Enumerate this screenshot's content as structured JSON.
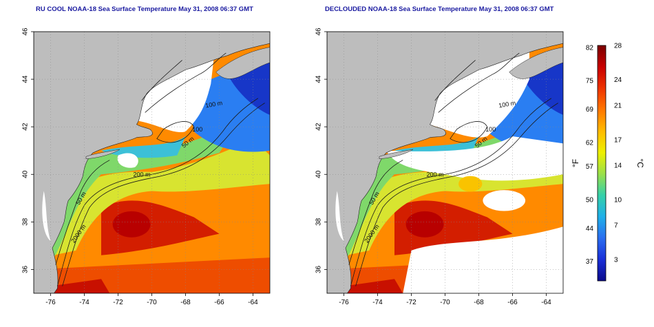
{
  "panels": [
    {
      "title": "RU COOL NOAA-18 Sea Surface Temperature May 31, 2008 06:37 GMT",
      "variant": "raw"
    },
    {
      "title": "DECLOUDED NOAA-18 Sea Surface Temperature May 31, 2008 06:37 GMT",
      "variant": "declouded"
    }
  ],
  "axes": {
    "lon_ticks": [
      "-76",
      "-74",
      "-72",
      "-70",
      "-68",
      "-66",
      "-64"
    ],
    "lat_ticks": [
      "36",
      "38",
      "40",
      "42",
      "44",
      "46"
    ],
    "lon_range": [
      -77,
      -63
    ],
    "lat_range": [
      35,
      46
    ]
  },
  "contours": [
    "100 m",
    "100",
    "50 m",
    "200 m",
    "50 m",
    "2000 m"
  ],
  "colorbar": {
    "fahrenheit_label": "°F",
    "celsius_label": "°C",
    "fahrenheit_ticks": [
      "82",
      "75",
      "69",
      "62",
      "57",
      "50",
      "44",
      "37"
    ],
    "celsius_ticks": [
      "28",
      "24",
      "21",
      "17",
      "14",
      "10",
      "7",
      "3"
    ],
    "colors": [
      "#7a0000",
      "#c80000",
      "#ee3300",
      "#ff7700",
      "#ffbb00",
      "#eef000",
      "#9be04a",
      "#35d0a8",
      "#1fb0e8",
      "#2a6ef0",
      "#1a2fd8",
      "#0a0a8a"
    ]
  },
  "colors": {
    "land": "#bdbdbd",
    "cloud": "#ffffff",
    "title": "#1a1aa0"
  }
}
